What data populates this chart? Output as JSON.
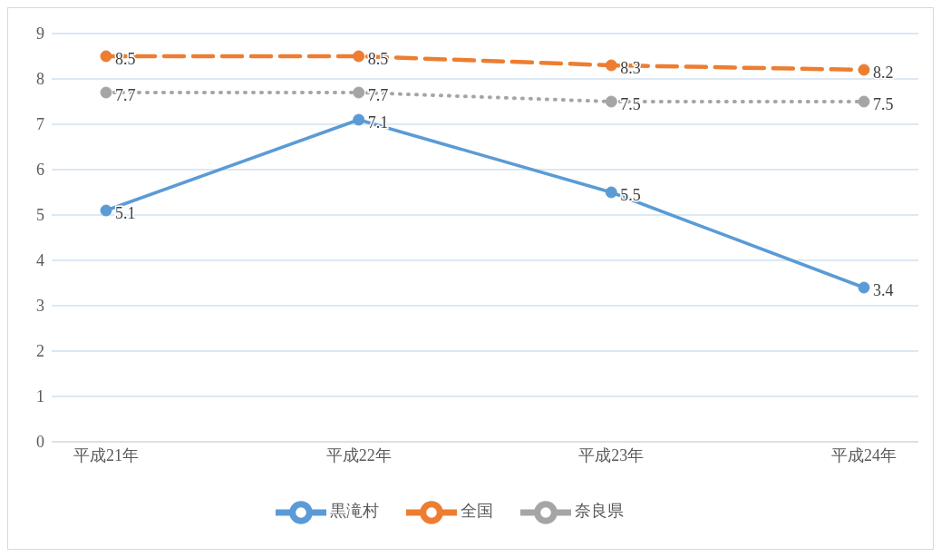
{
  "chart_data": {
    "type": "line",
    "categories": [
      "平成21年",
      "平成22年",
      "平成23年",
      "平成24年"
    ],
    "series": [
      {
        "name": "黒滝村",
        "color": "#5b9bd5",
        "values": [
          5.1,
          7.1,
          5.5,
          3.4
        ],
        "line_style": "solid",
        "marker": "circle"
      },
      {
        "name": "全国",
        "color": "#ed7d31",
        "values": [
          8.5,
          8.5,
          8.3,
          8.2
        ],
        "line_style": "dashed",
        "marker": "circle"
      },
      {
        "name": "奈良県",
        "color": "#a5a5a5",
        "values": [
          7.7,
          7.7,
          7.5,
          7.5
        ],
        "line_style": "dotted",
        "marker": "circle"
      }
    ],
    "ylim": [
      0,
      9
    ],
    "yticks": [
      0,
      1,
      2,
      3,
      4,
      5,
      6,
      7,
      8,
      9
    ],
    "grid": "y",
    "legend": "bottom",
    "data_labels": true
  }
}
